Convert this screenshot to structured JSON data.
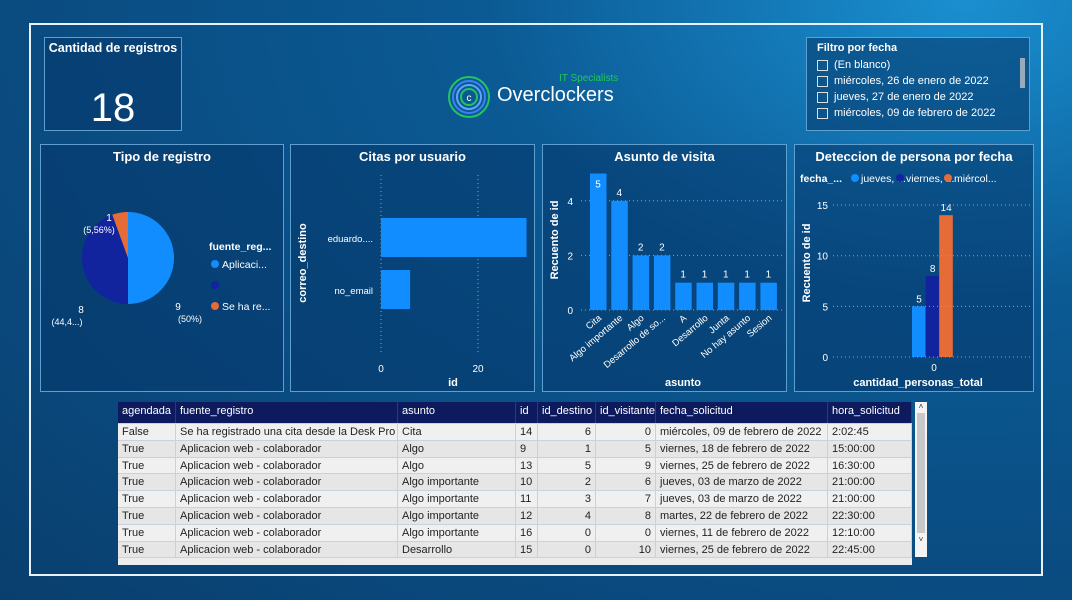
{
  "kpi": {
    "title": "Cantidad de registros",
    "value": "18"
  },
  "logo": {
    "tagline": "IT Specialists",
    "name": "Overclockers"
  },
  "filter": {
    "title": "Filtro por fecha",
    "items": [
      "(En blanco)",
      "miércoles, 26 de enero de 2022",
      "jueves, 27 de enero de 2022",
      "miércoles, 09 de febrero de 2022"
    ]
  },
  "chart_data": [
    {
      "type": "pie",
      "title": "Tipo de registro",
      "legend_title": "fuente_reg...",
      "legend": [
        "Aplicaci...",
        "",
        "Se ha re..."
      ],
      "values": [
        9,
        8,
        1
      ],
      "labels": [
        [
          "9",
          "(50%)"
        ],
        [
          "8",
          "(44,4...)"
        ],
        [
          "1",
          "(5,56%)"
        ]
      ],
      "colors": [
        "#118dff",
        "#12239e",
        "#e66c37"
      ]
    },
    {
      "type": "bar",
      "orientation": "horizontal",
      "title": "Citas por usuario",
      "xlabel": "id",
      "ylabel": "correo_destino",
      "categories": [
        "eduardo....",
        "no_email"
      ],
      "values": [
        30,
        6
      ],
      "xticks": [
        "0",
        "20"
      ],
      "color": "#118dff"
    },
    {
      "type": "bar",
      "title": "Asunto de visita",
      "xlabel": "asunto",
      "ylabel": "Recuento de id",
      "categories": [
        "Cita",
        "Algo importante",
        "Algo",
        "Desarrollo de so...",
        "A",
        "Desarrollo",
        "Junta",
        "No hay asunto",
        "Sesion"
      ],
      "values": [
        5,
        4,
        2,
        2,
        1,
        1,
        1,
        1,
        1
      ],
      "yticks": [
        "0",
        "2",
        "4"
      ],
      "color": "#118dff"
    },
    {
      "type": "bar",
      "title": "Deteccion de persona por fecha",
      "xlabel": "cantidad_personas_total",
      "ylabel": "Recuento de id",
      "legend_title": "fecha_...",
      "categories": [
        "0"
      ],
      "series": [
        {
          "name": "jueves, ...",
          "values": [
            5
          ],
          "color": "#118dff"
        },
        {
          "name": "viernes, ...",
          "values": [
            8
          ],
          "color": "#12239e"
        },
        {
          "name": "miércol...",
          "values": [
            14
          ],
          "color": "#e66c37"
        }
      ],
      "yticks": [
        "0",
        "5",
        "10",
        "15"
      ]
    }
  ],
  "table": {
    "columns": [
      "agendada",
      "fuente_registro",
      "asunto",
      "id",
      "id_destino",
      "id_visitante",
      "fecha_solicitud",
      "hora_solicitud"
    ],
    "rows": [
      [
        "False",
        "Se ha registrado una cita desde la Desk Pro",
        "Cita",
        "14",
        "6",
        "0",
        "miércoles, 09 de febrero de 2022",
        "2:02:45"
      ],
      [
        "True",
        "Aplicacion web - colaborador",
        "Algo",
        "9",
        "1",
        "5",
        "viernes, 18 de febrero de 2022",
        "15:00:00"
      ],
      [
        "True",
        "Aplicacion web - colaborador",
        "Algo",
        "13",
        "5",
        "9",
        "viernes, 25 de febrero de 2022",
        "16:30:00"
      ],
      [
        "True",
        "Aplicacion web - colaborador",
        "Algo importante",
        "10",
        "2",
        "6",
        "jueves, 03 de marzo de 2022",
        "21:00:00"
      ],
      [
        "True",
        "Aplicacion web - colaborador",
        "Algo importante",
        "11",
        "3",
        "7",
        "jueves, 03 de marzo de 2022",
        "21:00:00"
      ],
      [
        "True",
        "Aplicacion web - colaborador",
        "Algo importante",
        "12",
        "4",
        "8",
        "martes, 22 de febrero de 2022",
        "22:30:00"
      ],
      [
        "True",
        "Aplicacion web - colaborador",
        "Algo importante",
        "16",
        "0",
        "0",
        "viernes, 11 de febrero de 2022",
        "12:10:00"
      ],
      [
        "True",
        "Aplicacion web - colaborador",
        "Desarrollo",
        "15",
        "0",
        "10",
        "viernes, 25 de febrero de 2022",
        "22:45:00"
      ]
    ]
  }
}
